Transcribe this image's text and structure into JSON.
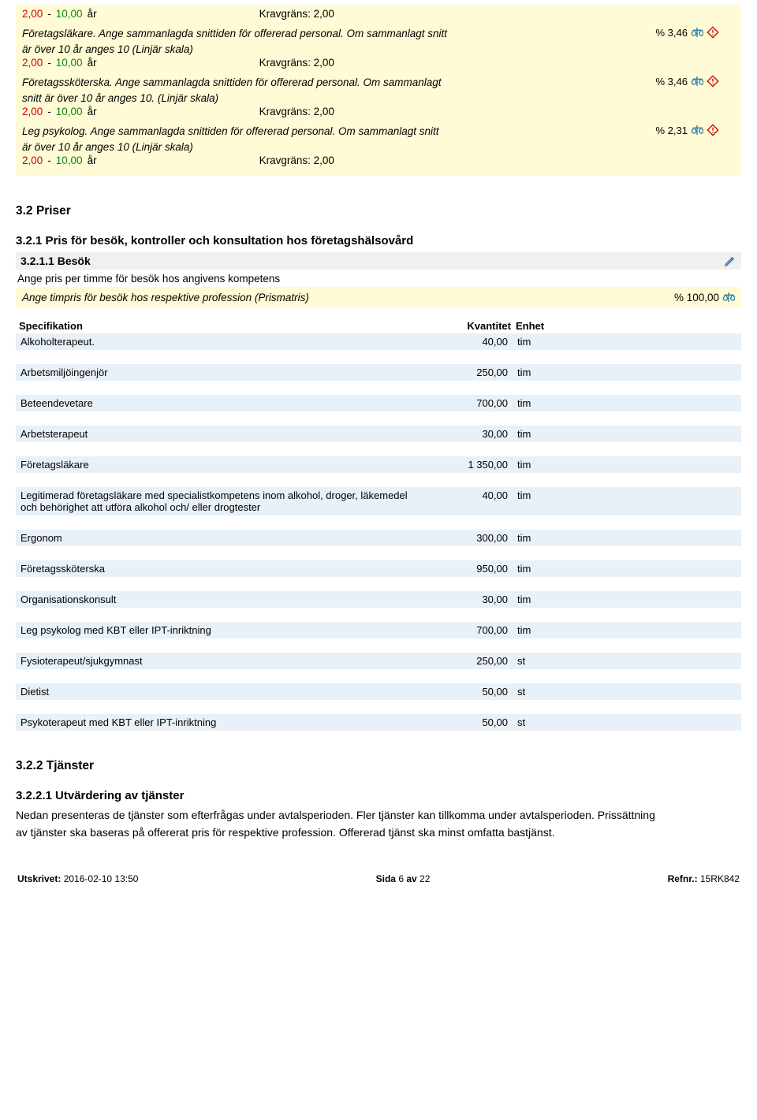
{
  "range": {
    "low": "2,00",
    "high": "10,00",
    "unit": "år",
    "krav_label": "Kravgräns:",
    "krav_value": "2,00"
  },
  "criteria": [
    {
      "desc": "Företagsläkare. Ange sammanlagda snittiden för offererad personal. Om sammanlagt snitt är över 10 år anges 10 (Linjär skala)",
      "pct": "% 3,46"
    },
    {
      "desc": "Företagssköterska. Ange sammanlagda snittiden för offererad personal. Om sammanlagt snitt är över 10 år anges 10. (Linjär skala)",
      "pct": "% 3,46"
    },
    {
      "desc": "Leg psykolog. Ange sammanlagda snittiden för offererad personal. Om sammanlagt snitt är över 10 år anges 10 (Linjär skala)",
      "pct": "% 2,31"
    }
  ],
  "sec32": "3.2 Priser",
  "sec321": "3.2.1 Pris för besök, kontroller och konsultation hos företagshälsovård",
  "sec3211": "3.2.1.1 Besök",
  "line_ange": "Ange pris per timme för besök hos angivens kompetens",
  "pris_highlight": "Ange timpris för besök hos respektive profession (Prismatris)",
  "pris_pct": "% 100,00",
  "table": {
    "headers": {
      "spec": "Specifikation",
      "qty": "Kvantitet",
      "unit": "Enhet"
    },
    "rows": [
      {
        "spec": "Alkoholterapeut.",
        "qty": "40,00",
        "unit": "tim"
      },
      {
        "spec": "Arbetsmiljöingenjör",
        "qty": "250,00",
        "unit": "tim"
      },
      {
        "spec": "Beteendevetare",
        "qty": "700,00",
        "unit": "tim"
      },
      {
        "spec": "Arbetsterapeut",
        "qty": "30,00",
        "unit": "tim"
      },
      {
        "spec": "Företagsläkare",
        "qty": "1 350,00",
        "unit": "tim"
      },
      {
        "spec": "Legitimerad företagsläkare med specialistkompetens inom alkohol, droger, läkemedel och behörighet att utföra alkohol och/ eller drogtester",
        "qty": "40,00",
        "unit": "tim"
      },
      {
        "spec": "Ergonom",
        "qty": "300,00",
        "unit": "tim"
      },
      {
        "spec": "Företagssköterska",
        "qty": "950,00",
        "unit": "tim"
      },
      {
        "spec": "Organisationskonsult",
        "qty": "30,00",
        "unit": "tim"
      },
      {
        "spec": "Leg psykolog med KBT eller IPT-inriktning",
        "qty": "700,00",
        "unit": "tim"
      },
      {
        "spec": "Fysioterapeut/sjukgymnast",
        "qty": "250,00",
        "unit": "st"
      },
      {
        "spec": "Dietist",
        "qty": "50,00",
        "unit": "st"
      },
      {
        "spec": "Psykoterapeut med KBT eller IPT-inriktning",
        "qty": "50,00",
        "unit": "st"
      }
    ]
  },
  "sec322": "3.2.2 Tjänster",
  "sec3221": "3.2.2.1 Utvärdering av tjänster",
  "body3221": "Nedan presenteras de tjänster som efterfrågas under avtalsperioden. Fler tjänster kan tillkomma under avtalsperioden. Prissättning av tjänster ska baseras på offererat pris för respektive profession. Offererad tjänst ska minst omfatta bastjänst.",
  "footer": {
    "printed_lbl": "Utskrivet:",
    "printed_val": "2016-02-10 13:50",
    "page_lbl": "Sida",
    "page_cur": "6",
    "page_of": "av",
    "page_tot": "22",
    "ref_lbl": "Refnr.:",
    "ref_val": "15RK842"
  }
}
